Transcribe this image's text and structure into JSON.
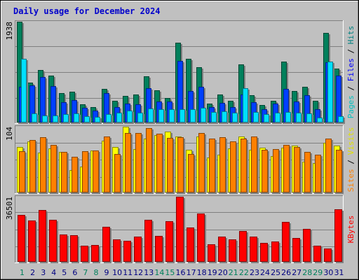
{
  "chart_data": {
    "title": "Daily usage for December 2024",
    "type": "bar",
    "x": [
      1,
      2,
      3,
      4,
      5,
      6,
      7,
      8,
      9,
      10,
      11,
      12,
      13,
      14,
      15,
      16,
      17,
      18,
      19,
      20,
      21,
      22,
      23,
      24,
      25,
      26,
      27,
      28,
      29,
      30,
      31
    ],
    "weekend_days": [
      1,
      7,
      8,
      14,
      15,
      21,
      22,
      28,
      29
    ],
    "colors": {
      "background": "#c0c0c0",
      "title": "#0000cc",
      "weekday_label": "#000080",
      "weekend_label": "#00805c",
      "hits": "#00805c",
      "files": "#0040ff",
      "pages": "#00e0ff",
      "visits": "#ffff00",
      "sites": "#ff8000",
      "kbytes": "#ff0000"
    },
    "panels": [
      {
        "id": "hits_files_pages",
        "ymax_label": "1938",
        "ylim": [
          0,
          1938
        ],
        "side_labels": [
          {
            "text": "Pages",
            "color": "#00c0c0"
          },
          {
            "text": " / ",
            "color": "#000000"
          },
          {
            "text": "Files",
            "color": "#0000ff"
          },
          {
            "text": " / ",
            "color": "#000000"
          },
          {
            "text": "Hits",
            "color": "#008080"
          }
        ],
        "series": [
          {
            "name": "Hits",
            "color": "#00805c",
            "values": [
              1938,
              770,
              1010,
              900,
              570,
              590,
              355,
              300,
              645,
              420,
              510,
              540,
              890,
              625,
              470,
              1540,
              1220,
              1060,
              370,
              540,
              420,
              1120,
              520,
              340,
              420,
              1170,
              600,
              690,
              420,
              1720,
              1040
            ]
          },
          {
            "name": "Files",
            "color": "#0040ff",
            "values": [
              685,
              720,
              880,
              705,
              390,
              435,
              285,
              225,
              570,
              300,
              360,
              345,
              660,
              405,
              405,
              1180,
              610,
              690,
              290,
              380,
              295,
              535,
              385,
              255,
              370,
              650,
              400,
              525,
              260,
              1160,
              900
            ]
          },
          {
            "name": "Pages",
            "color": "#00e0ff",
            "values": [
              1230,
              170,
              135,
              130,
              165,
              170,
              120,
              105,
              165,
              185,
              230,
              190,
              275,
              250,
              250,
              250,
              250,
              280,
              200,
              210,
              190,
              660,
              200,
              165,
              190,
              200,
              190,
              170,
              95,
              1170,
              115
            ]
          }
        ]
      },
      {
        "id": "visits_sites",
        "ymax_label": "104",
        "ylim": [
          0,
          104
        ],
        "side_labels": [
          {
            "text": "Sites",
            "color": "#ff8000"
          },
          {
            "text": " / ",
            "color": "#000000"
          },
          {
            "text": "Visits",
            "color": "#e0e000"
          }
        ],
        "series": [
          {
            "name": "Visits",
            "color": "#ffff00",
            "values": [
              72,
              81,
              63,
              70,
              64,
              35,
              41,
              66,
              82,
              72,
              104,
              69,
              85,
              91,
              96,
              88,
              67,
              88,
              55,
              60,
              70,
              89,
              68,
              71,
              57,
              71,
              74,
              49,
              47,
              79,
              74
            ]
          },
          {
            "name": "Sites",
            "color": "#ff8000",
            "values": [
              65,
              83,
              87,
              75,
              64,
              56,
              65,
              66,
              88,
              61,
              94,
              94,
              102,
              93,
              86,
              87,
              61,
              94,
              85,
              87,
              81,
              85,
              89,
              68,
              69,
              75,
              72,
              64,
              60,
              85,
              67
            ]
          }
        ]
      },
      {
        "id": "kbytes",
        "ymax_label": "36501",
        "ylim": [
          0,
          36501
        ],
        "side_labels": [
          {
            "text": "KBytes",
            "color": "#ff0000"
          }
        ],
        "series": [
          {
            "name": "KBytes",
            "color": "#ff0000",
            "values": [
              26300,
              23100,
              29000,
              23600,
              15300,
              14800,
              9200,
              9500,
              19800,
              12600,
              11900,
              14000,
              23500,
              14600,
              22800,
              36501,
              19200,
              26900,
              9800,
              14300,
              12500,
              17400,
              14200,
              10500,
              11500,
              22200,
              13300,
              18600,
              8900,
              7400,
              29500
            ]
          }
        ]
      }
    ]
  }
}
